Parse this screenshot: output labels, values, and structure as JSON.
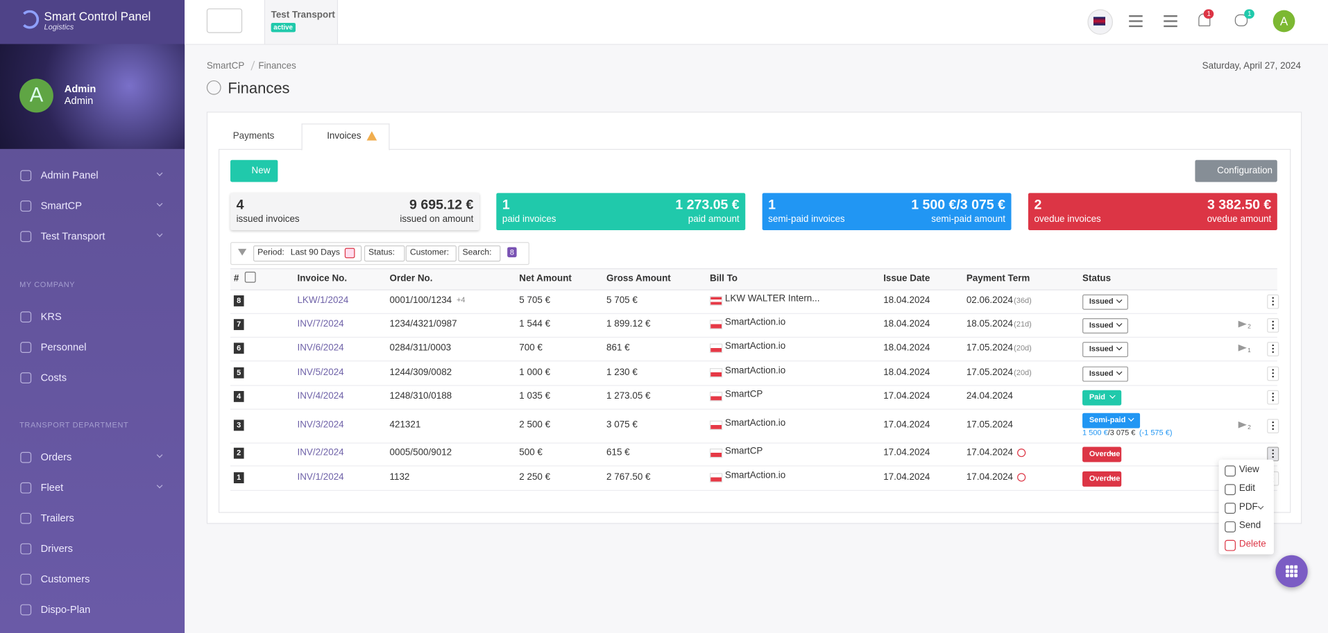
{
  "sidebar": {
    "brand": "Smart Control Panel",
    "brand_sub": "Logistics",
    "avatar": "A",
    "user_name": "Admin",
    "user_role": "Admin",
    "menu": [
      "Admin Panel",
      "SmartCP",
      "Test Transport"
    ],
    "sections": [
      {
        "title": "MY COMPANY",
        "items": [
          "KRS",
          "Personnel",
          "Costs"
        ]
      },
      {
        "title": "TRANSPORT DEPARTMENT",
        "items": [
          "Orders",
          "Fleet",
          "Trailers",
          "Drivers",
          "Customers",
          "Dispo-Plan"
        ]
      }
    ]
  },
  "topbar": {
    "company": "Test Transport",
    "badge": "active",
    "notifications": "1",
    "users": "1",
    "avatar": "A"
  },
  "breadcrumb": [
    "SmartCP",
    "Finances"
  ],
  "date": "Saturday, April 27, 2024",
  "page_title": "Finances",
  "tabs": [
    "Payments",
    "Invoices"
  ],
  "buttons": {
    "new": "New",
    "configuration": "Configuration"
  },
  "summary": [
    {
      "count": "4",
      "label": "issued invoices",
      "amount": "9 695.12 €",
      "amount_label": "issued on amount",
      "color": "#f4f4f5",
      "text_color": "#333333"
    },
    {
      "count": "1",
      "label": "paid invoices",
      "amount": "1 273.05 €",
      "amount_label": "paid amount",
      "color": "#20c9ab",
      "text_color": "#ffffff"
    },
    {
      "count": "1",
      "label": "semi-paid invoices",
      "amount": "1 500 €/3 075 €",
      "amount_label": "semi-paid amount",
      "color": "#2196f3",
      "text_color": "#ffffff"
    },
    {
      "count": "2",
      "label": "ovedue invoices",
      "amount": "3 382.50 €",
      "amount_label": "ovedue amount",
      "color": "#dc3545",
      "text_color": "#ffffff"
    }
  ],
  "filters": {
    "period_label": "Period:",
    "period_value": "Last 90 Days",
    "status": "Status:",
    "customer": "Customer:",
    "search": "Search:",
    "count": "8"
  },
  "table": {
    "headers": [
      "#",
      "Invoice No.",
      "Order No.",
      "Net Amount",
      "Gross Amount",
      "Bill To",
      "Issue Date",
      "Payment Term",
      "Status"
    ],
    "rows": [
      {
        "n": "8",
        "invoice": "LKW/1/2024",
        "order": "0001/100/1234",
        "order_extra": "+4",
        "net": "5 705 €",
        "gross": "5 705 €",
        "bill_to": "LKW WALTER Intern...",
        "issue": "18.04.2024",
        "term": "02.06.2024",
        "term_days": "(36d)",
        "status": "Issued",
        "status_color": "#ffffff"
      },
      {
        "n": "7",
        "invoice": "INV/7/2024",
        "order": "1234/4321/0987",
        "net": "1 544 €",
        "gross": "1 899.12 €",
        "bill_to": "SmartAction.io",
        "issue": "18.04.2024",
        "term": "18.05.2024",
        "term_days": "(21d)",
        "status": "Issued",
        "status_color": "#ffffff",
        "sent": "2"
      },
      {
        "n": "6",
        "invoice": "INV/6/2024",
        "order": "0284/311/0003",
        "net": "700 €",
        "gross": "861 €",
        "bill_to": "SmartAction.io",
        "issue": "18.04.2024",
        "term": "17.05.2024",
        "term_days": "(20d)",
        "status": "Issued",
        "status_color": "#ffffff",
        "sent": "1"
      },
      {
        "n": "5",
        "invoice": "INV/5/2024",
        "order": "1244/309/0082",
        "net": "1 000 €",
        "gross": "1 230 €",
        "bill_to": "SmartAction.io",
        "issue": "18.04.2024",
        "term": "17.05.2024",
        "term_days": "(20d)",
        "status": "Issued",
        "status_color": "#ffffff"
      },
      {
        "n": "4",
        "invoice": "INV/4/2024",
        "order": "1248/310/0188",
        "net": "1 035 €",
        "gross": "1 273.05 €",
        "bill_to": "SmartCP",
        "issue": "17.04.2024",
        "term": "24.04.2024",
        "status": "Paid",
        "status_color": "#20c9ab"
      },
      {
        "n": "3",
        "invoice": "INV/3/2024",
        "order": "421321",
        "net": "2 500 €",
        "gross": "3 075 €",
        "bill_to": "SmartAction.io",
        "issue": "17.04.2024",
        "term": "17.05.2024",
        "status": "Semi-paid",
        "status_color": "#2196f3",
        "paid": "1 500 €",
        "total": "/3 075 €",
        "diff": "(-1 575 €)",
        "sent": "2"
      },
      {
        "n": "2",
        "invoice": "INV/2/2024",
        "order": "0005/500/9012",
        "net": "500 €",
        "gross": "615 €",
        "bill_to": "SmartCP",
        "issue": "17.04.2024",
        "term": "17.04.2024",
        "status": "Overdue",
        "status_color": "#dc3545"
      },
      {
        "n": "1",
        "invoice": "INV/1/2024",
        "order": "1132",
        "net": "2 250 €",
        "gross": "2 767.50 €",
        "bill_to": "SmartAction.io",
        "issue": "17.04.2024",
        "term": "17.04.2024",
        "status": "Overdue",
        "status_color": "#dc3545"
      }
    ]
  },
  "row_menu": [
    "View",
    "Edit",
    "PDF",
    "Send",
    "Delete"
  ]
}
